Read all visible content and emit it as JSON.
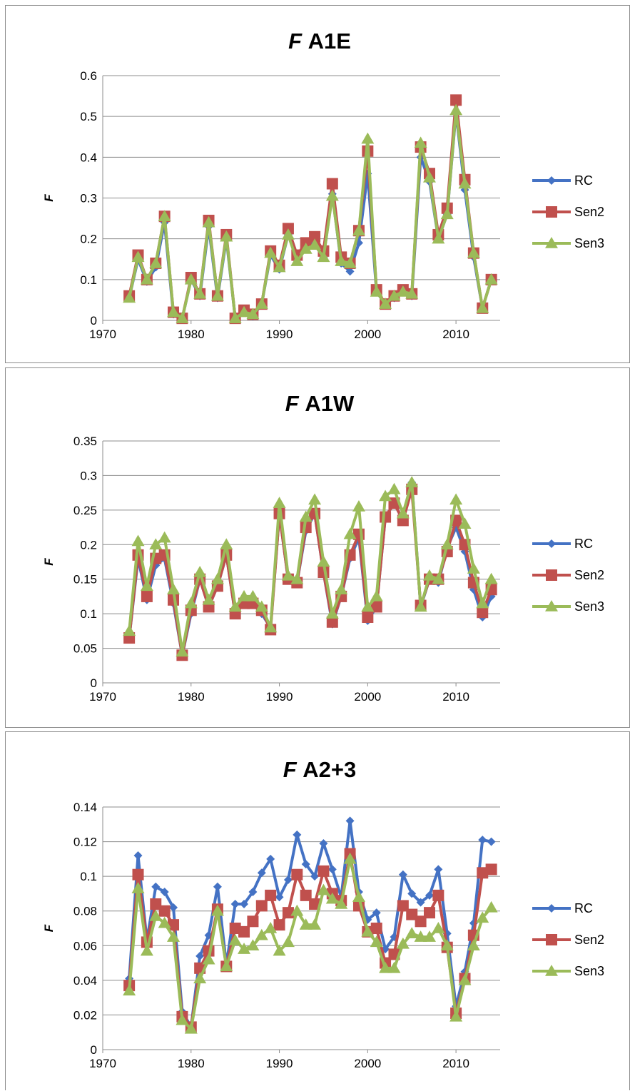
{
  "series_colors": {
    "RC": "#4472c4",
    "Sen2": "#c0504d",
    "Sen3": "#9bbb59"
  },
  "chart_data": [
    {
      "type": "line",
      "title_prefix": "F",
      "title": "A1E",
      "ylabel": "F",
      "xlabel": "",
      "xlim": [
        1970,
        2015
      ],
      "xticks": [
        1970,
        1980,
        1990,
        2000,
        2010
      ],
      "ylim": [
        0,
        0.6
      ],
      "yticks": [
        0,
        0.1,
        0.2,
        0.3,
        0.4,
        0.5,
        0.6
      ],
      "grid": true,
      "legend_position": "right",
      "x": [
        1973,
        1974,
        1975,
        1976,
        1977,
        1978,
        1979,
        1980,
        1981,
        1982,
        1983,
        1984,
        1985,
        1986,
        1987,
        1988,
        1989,
        1990,
        1991,
        1992,
        1993,
        1994,
        1995,
        1996,
        1997,
        1998,
        1999,
        2000,
        2001,
        2002,
        2003,
        2004,
        2005,
        2006,
        2007,
        2008,
        2009,
        2010,
        2011,
        2012,
        2013,
        2014
      ],
      "series": [
        {
          "name": "RC",
          "marker": "diamond",
          "values": [
            0.055,
            0.15,
            0.095,
            0.13,
            0.24,
            0.015,
            0.005,
            0.1,
            0.06,
            0.23,
            0.055,
            0.2,
            0.005,
            0.02,
            0.01,
            0.04,
            0.16,
            0.125,
            0.21,
            0.15,
            0.175,
            0.19,
            0.155,
            0.31,
            0.14,
            0.12,
            0.19,
            0.36,
            0.07,
            0.04,
            0.055,
            0.07,
            0.06,
            0.4,
            0.34,
            0.2,
            0.26,
            0.51,
            0.32,
            0.155,
            0.03,
            0.1
          ]
        },
        {
          "name": "Sen2",
          "marker": "square",
          "values": [
            0.06,
            0.16,
            0.1,
            0.14,
            0.255,
            0.02,
            0.005,
            0.105,
            0.065,
            0.245,
            0.06,
            0.21,
            0.005,
            0.025,
            0.015,
            0.04,
            0.17,
            0.135,
            0.225,
            0.16,
            0.19,
            0.205,
            0.17,
            0.335,
            0.155,
            0.14,
            0.22,
            0.415,
            0.075,
            0.04,
            0.06,
            0.075,
            0.065,
            0.425,
            0.36,
            0.21,
            0.275,
            0.54,
            0.345,
            0.165,
            0.03,
            0.1
          ]
        },
        {
          "name": "Sen3",
          "marker": "triangle",
          "values": [
            0.055,
            0.155,
            0.1,
            0.14,
            0.255,
            0.02,
            0.005,
            0.1,
            0.065,
            0.24,
            0.06,
            0.205,
            0.005,
            0.02,
            0.015,
            0.04,
            0.165,
            0.13,
            0.21,
            0.145,
            0.175,
            0.185,
            0.155,
            0.305,
            0.145,
            0.14,
            0.22,
            0.445,
            0.07,
            0.04,
            0.06,
            0.07,
            0.065,
            0.435,
            0.35,
            0.2,
            0.26,
            0.515,
            0.335,
            0.165,
            0.03,
            0.1
          ]
        }
      ]
    },
    {
      "type": "line",
      "title_prefix": "F",
      "title": "A1W",
      "ylabel": "F",
      "xlabel": "",
      "xlim": [
        1970,
        2015
      ],
      "xticks": [
        1970,
        1980,
        1990,
        2000,
        2010
      ],
      "ylim": [
        0,
        0.35
      ],
      "yticks": [
        0,
        0.05,
        0.1,
        0.15,
        0.2,
        0.25,
        0.3,
        0.35
      ],
      "grid": true,
      "legend_position": "right",
      "x": [
        1973,
        1974,
        1975,
        1976,
        1977,
        1978,
        1979,
        1980,
        1981,
        1982,
        1983,
        1984,
        1985,
        1986,
        1987,
        1988,
        1989,
        1990,
        1991,
        1992,
        1993,
        1994,
        1995,
        1996,
        1997,
        1998,
        1999,
        2000,
        2001,
        2002,
        2003,
        2004,
        2005,
        2006,
        2007,
        2008,
        2009,
        2010,
        2011,
        2012,
        2013,
        2014
      ],
      "series": [
        {
          "name": "RC",
          "marker": "diamond",
          "values": [
            0.065,
            0.18,
            0.12,
            0.17,
            0.18,
            0.115,
            0.04,
            0.1,
            0.15,
            0.11,
            0.14,
            0.185,
            0.1,
            0.115,
            0.115,
            0.1,
            0.08,
            0.245,
            0.15,
            0.145,
            0.22,
            0.245,
            0.16,
            0.085,
            0.125,
            0.18,
            0.21,
            0.09,
            0.11,
            0.24,
            0.26,
            0.235,
            0.29,
            0.11,
            0.15,
            0.145,
            0.195,
            0.225,
            0.19,
            0.135,
            0.095,
            0.125
          ]
        },
        {
          "name": "Sen2",
          "marker": "square",
          "values": [
            0.065,
            0.185,
            0.125,
            0.18,
            0.185,
            0.12,
            0.04,
            0.105,
            0.15,
            0.11,
            0.14,
            0.185,
            0.1,
            0.115,
            0.115,
            0.105,
            0.077,
            0.245,
            0.15,
            0.145,
            0.225,
            0.245,
            0.16,
            0.088,
            0.125,
            0.185,
            0.215,
            0.095,
            0.11,
            0.24,
            0.26,
            0.235,
            0.28,
            0.112,
            0.15,
            0.15,
            0.19,
            0.235,
            0.2,
            0.145,
            0.102,
            0.135
          ]
        },
        {
          "name": "Sen3",
          "marker": "triangle",
          "values": [
            0.075,
            0.205,
            0.14,
            0.2,
            0.21,
            0.135,
            0.045,
            0.115,
            0.16,
            0.12,
            0.15,
            0.2,
            0.11,
            0.125,
            0.125,
            0.11,
            0.08,
            0.26,
            0.155,
            0.15,
            0.24,
            0.265,
            0.175,
            0.1,
            0.135,
            0.215,
            0.255,
            0.11,
            0.125,
            0.27,
            0.28,
            0.245,
            0.29,
            0.11,
            0.155,
            0.15,
            0.2,
            0.265,
            0.23,
            0.165,
            0.115,
            0.15
          ]
        }
      ]
    },
    {
      "type": "line",
      "title_prefix": "F",
      "title": "A2+3",
      "ylabel": "F",
      "xlabel": "",
      "xlim": [
        1970,
        2015
      ],
      "xticks": [
        1970,
        1980,
        1990,
        2000,
        2010
      ],
      "ylim": [
        0,
        0.14
      ],
      "yticks": [
        0,
        0.02,
        0.04,
        0.06,
        0.08,
        0.1,
        0.12,
        0.14
      ],
      "grid": true,
      "legend_position": "right",
      "x": [
        1973,
        1974,
        1975,
        1976,
        1977,
        1978,
        1979,
        1980,
        1981,
        1982,
        1983,
        1984,
        1985,
        1986,
        1987,
        1988,
        1989,
        1990,
        1991,
        1992,
        1993,
        1994,
        1995,
        1996,
        1997,
        1998,
        1999,
        2000,
        2001,
        2002,
        2003,
        2004,
        2005,
        2006,
        2007,
        2008,
        2009,
        2010,
        2011,
        2012,
        2013,
        2014
      ],
      "series": [
        {
          "name": "RC",
          "marker": "diamond",
          "values": [
            0.041,
            0.112,
            0.063,
            0.094,
            0.091,
            0.082,
            0.022,
            0.013,
            0.054,
            0.066,
            0.094,
            0.049,
            0.084,
            0.084,
            0.091,
            0.102,
            0.11,
            0.088,
            0.098,
            0.124,
            0.107,
            0.1,
            0.119,
            0.104,
            0.088,
            0.132,
            0.091,
            0.075,
            0.079,
            0.058,
            0.065,
            0.101,
            0.09,
            0.085,
            0.089,
            0.104,
            0.067,
            0.025,
            0.045,
            0.073,
            0.121,
            0.12
          ]
        },
        {
          "name": "Sen2",
          "marker": "square",
          "values": [
            0.037,
            0.101,
            0.062,
            0.084,
            0.08,
            0.072,
            0.019,
            0.013,
            0.047,
            0.057,
            0.081,
            0.048,
            0.07,
            0.068,
            0.074,
            0.083,
            0.089,
            0.072,
            0.079,
            0.101,
            0.089,
            0.084,
            0.103,
            0.09,
            0.086,
            0.113,
            0.083,
            0.068,
            0.07,
            0.05,
            0.055,
            0.083,
            0.078,
            0.074,
            0.079,
            0.089,
            0.059,
            0.021,
            0.041,
            0.066,
            0.102,
            0.104
          ]
        },
        {
          "name": "Sen3",
          "marker": "triangle",
          "values": [
            0.034,
            0.093,
            0.057,
            0.077,
            0.073,
            0.065,
            0.017,
            0.012,
            0.041,
            0.052,
            0.08,
            0.048,
            0.063,
            0.058,
            0.06,
            0.066,
            0.07,
            0.057,
            0.062,
            0.08,
            0.072,
            0.072,
            0.092,
            0.087,
            0.084,
            0.11,
            0.088,
            0.068,
            0.062,
            0.047,
            0.047,
            0.061,
            0.067,
            0.065,
            0.065,
            0.07,
            0.06,
            0.019,
            0.04,
            0.06,
            0.076,
            0.082
          ]
        }
      ]
    }
  ]
}
